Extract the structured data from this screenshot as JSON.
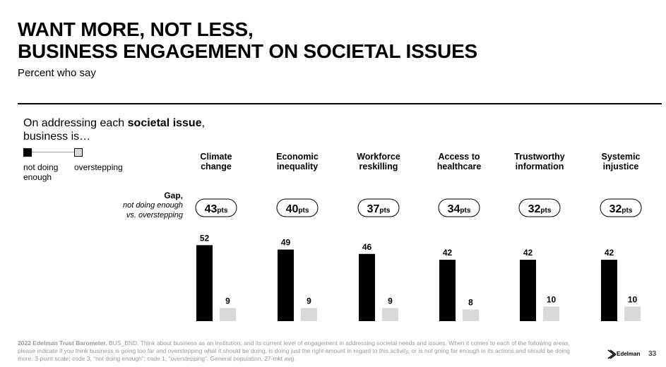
{
  "header": {
    "title_line1": "WANT MORE, NOT LESS,",
    "title_line2": "BUSINESS ENGAGEMENT ON SOCIETAL ISSUES",
    "subtitle": "Percent who say"
  },
  "intro": {
    "prefix": "On addressing each ",
    "bold": "societal issue",
    "suffix": ",",
    "line2": "business is…"
  },
  "legend": {
    "item1": "not doing enough",
    "item2": "overstepping"
  },
  "gap_label": {
    "title": "Gap,",
    "line1": "not doing enough",
    "line2": "vs. overstepping"
  },
  "chart_data": {
    "type": "bar",
    "categories": [
      "Climate change",
      "Economic inequality",
      "Workforce reskilling",
      "Access to healthcare",
      "Trustworthy information",
      "Systemic injustice"
    ],
    "category_lines": [
      [
        "Climate",
        "change"
      ],
      [
        "Economic",
        "inequality"
      ],
      [
        "Workforce",
        "reskilling"
      ],
      [
        "Access to",
        "healthcare"
      ],
      [
        "Trustworthy",
        "information"
      ],
      [
        "Systemic",
        "injustice"
      ]
    ],
    "series": [
      {
        "name": "not doing enough",
        "color": "#000000",
        "values": [
          52,
          49,
          46,
          42,
          42,
          42
        ]
      },
      {
        "name": "overstepping",
        "color": "#d9d9d9",
        "values": [
          9,
          9,
          9,
          8,
          10,
          10
        ]
      }
    ],
    "gaps": [
      43,
      40,
      37,
      34,
      32,
      32
    ],
    "gap_unit": "pts",
    "ylim": [
      0,
      60
    ],
    "grid": false
  },
  "footnote": {
    "bold": "2022 Edelman Trust Barometer.",
    "text": " BUS_BND. Think about business as an institution, and its current level of engagement in addressing societal needs and issues. When it comes to each of the following areas, please indicate if you think business is going too far and overstepping what it should be doing, is doing just the right amount in regard to this activity, or is not going far enough in its actions and should be doing more. 3-point scale; code 3, “not doing enough”; code 1, “overstepping”. General population, 27-mkt avg."
  },
  "brand": {
    "name": "Edelman",
    "page": "33"
  }
}
